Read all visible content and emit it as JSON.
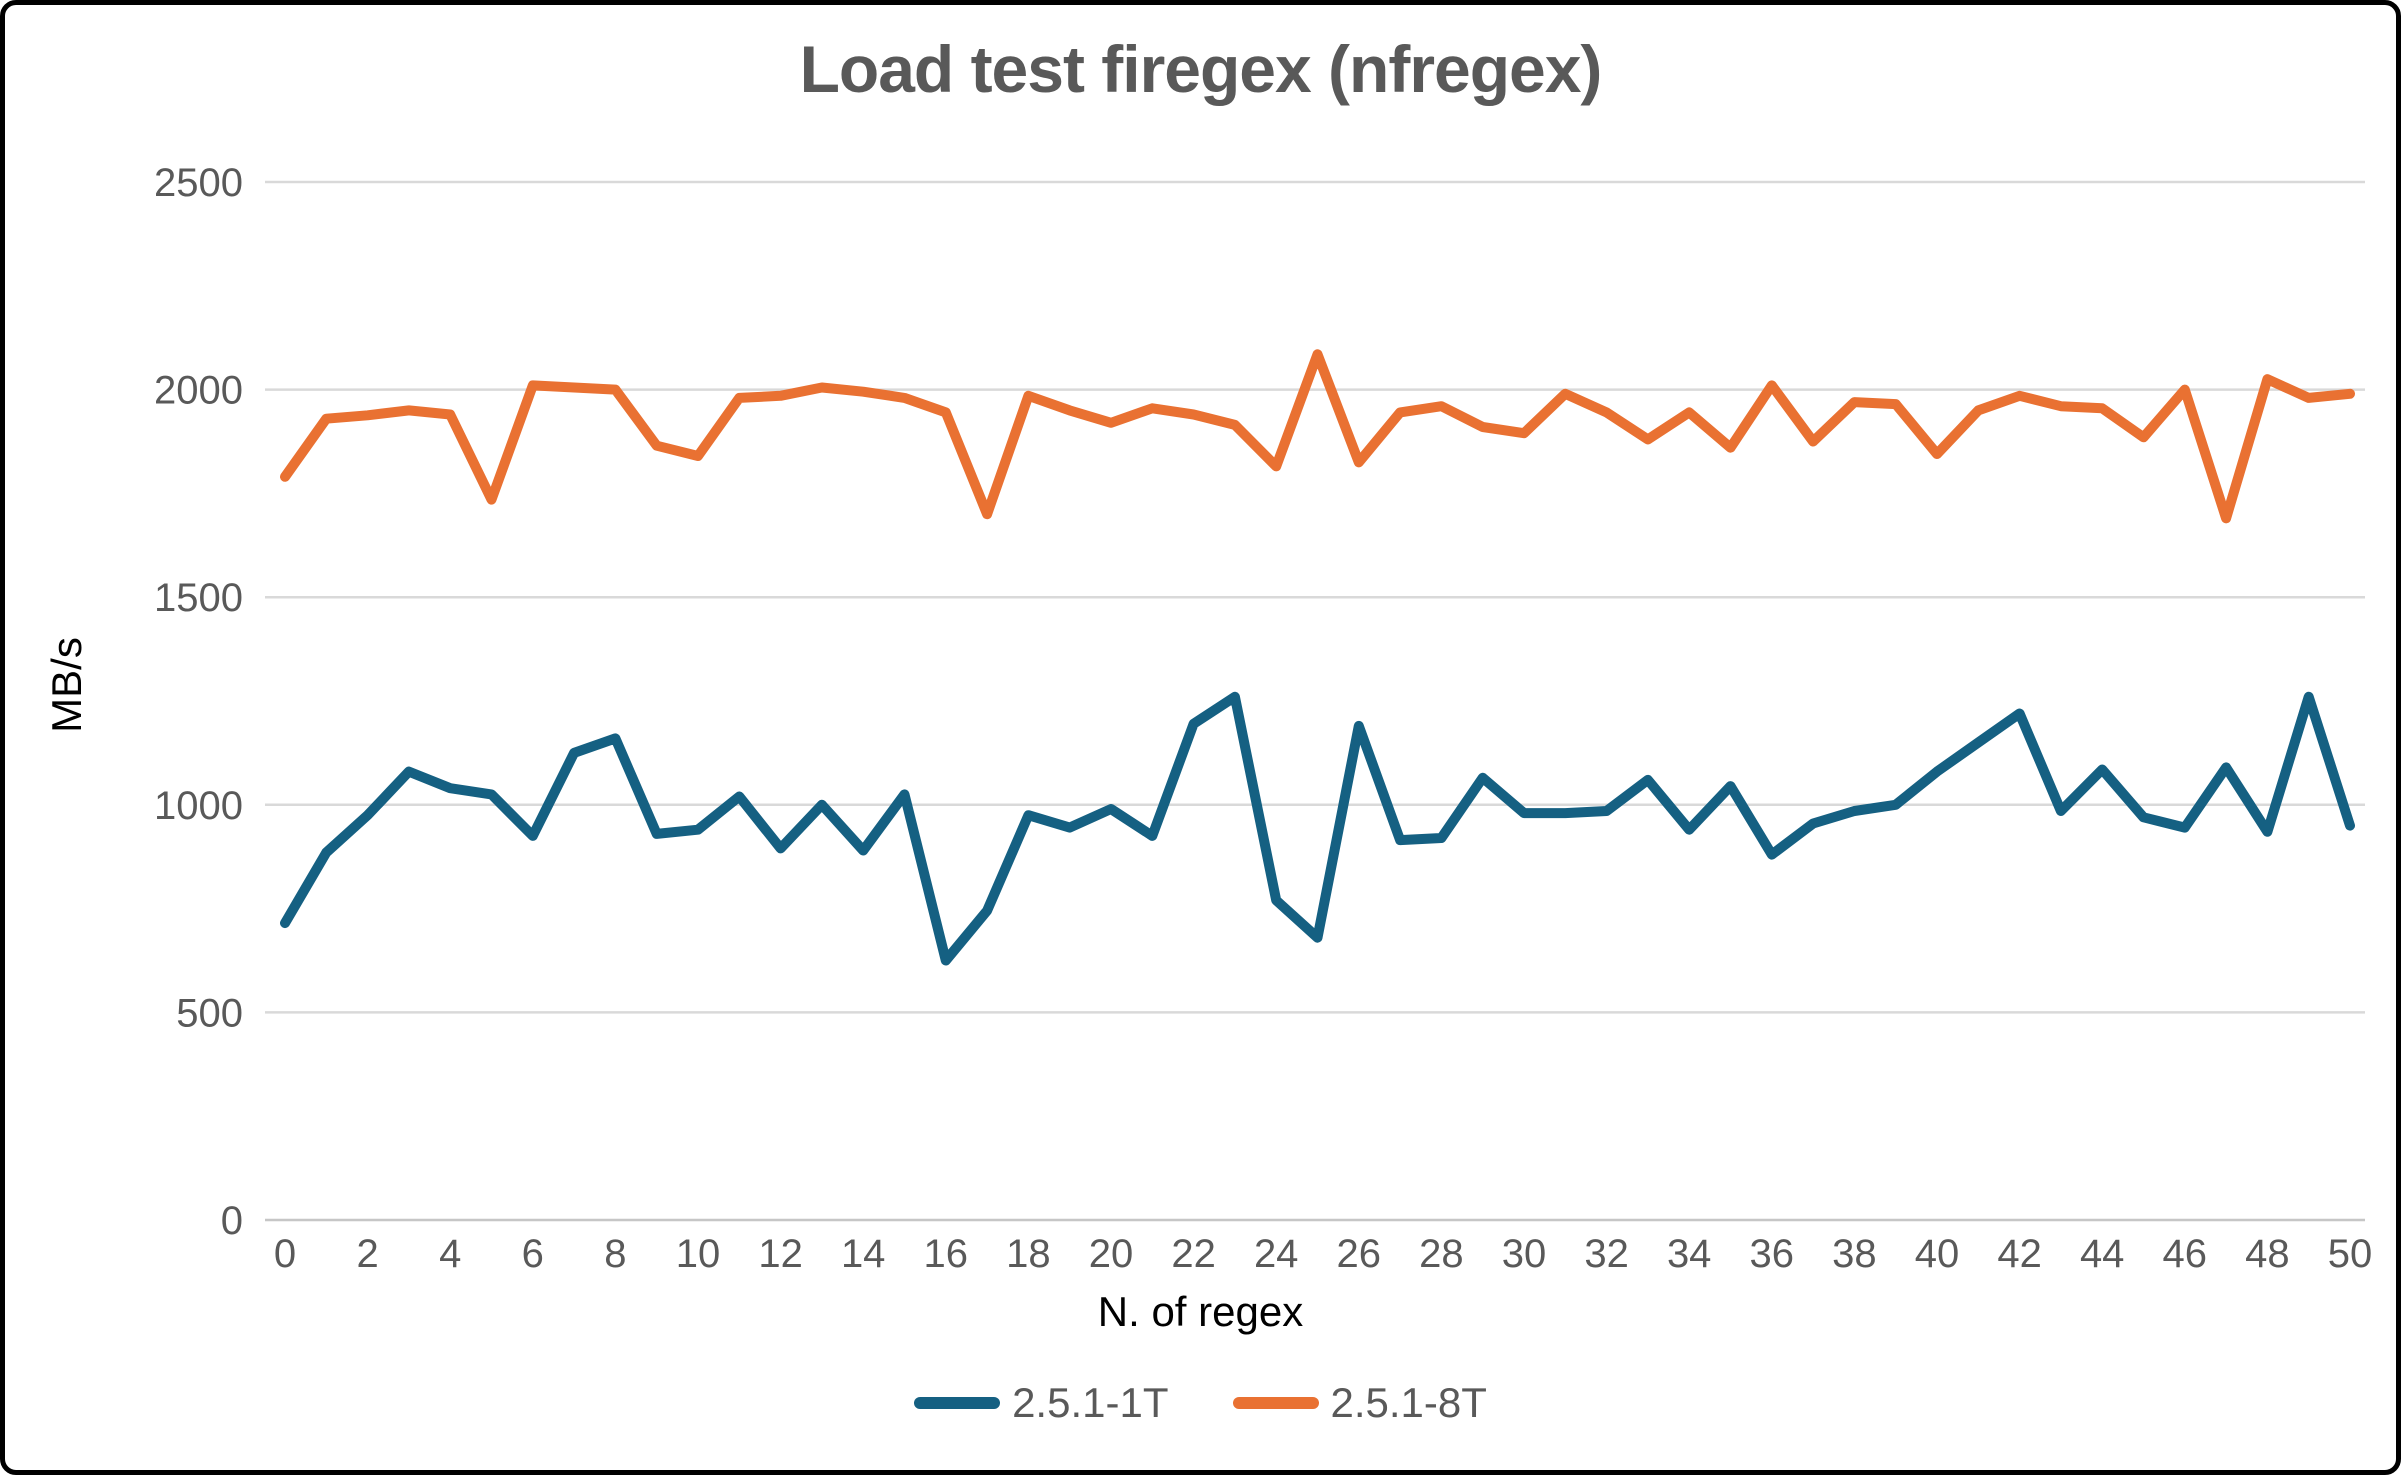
{
  "chart_data": {
    "type": "line",
    "title": "Load test firegex (nfregex)",
    "xlabel": "N. of regex",
    "ylabel": "MB/s",
    "x": [
      0,
      1,
      2,
      3,
      4,
      5,
      6,
      7,
      8,
      9,
      10,
      11,
      12,
      13,
      14,
      15,
      16,
      17,
      18,
      19,
      20,
      21,
      22,
      23,
      24,
      25,
      26,
      27,
      28,
      29,
      30,
      31,
      32,
      33,
      34,
      35,
      36,
      37,
      38,
      39,
      40,
      41,
      42,
      43,
      44,
      45,
      46,
      47,
      48,
      49,
      50
    ],
    "x_tick_interval": 2,
    "x_tick_labels": [
      "0",
      "2",
      "4",
      "6",
      "8",
      "10",
      "12",
      "14",
      "16",
      "18",
      "20",
      "22",
      "24",
      "26",
      "28",
      "30",
      "32",
      "34",
      "36",
      "38",
      "40",
      "42",
      "44",
      "46",
      "48",
      "50"
    ],
    "ylim": [
      0,
      2500
    ],
    "y_ticks": [
      0,
      500,
      1000,
      1500,
      2000,
      2500
    ],
    "grid": true,
    "legend_position": "bottom",
    "series": [
      {
        "name": "2.5.1-1T",
        "color": "#156082",
        "values": [
          715,
          885,
          975,
          1080,
          1040,
          1025,
          925,
          1125,
          1160,
          930,
          940,
          1020,
          895,
          1000,
          890,
          1025,
          625,
          745,
          975,
          945,
          990,
          925,
          1195,
          1260,
          770,
          680,
          1190,
          915,
          920,
          1065,
          980,
          980,
          985,
          1060,
          940,
          1045,
          880,
          955,
          985,
          1000,
          1080,
          1150,
          1220,
          985,
          1085,
          970,
          945,
          1090,
          935,
          1260,
          950
        ]
      },
      {
        "name": "2.5.1-8T",
        "color": "#E97132",
        "values": [
          1790,
          1930,
          1938,
          1950,
          1940,
          1735,
          2010,
          2005,
          2000,
          1865,
          1840,
          1980,
          1985,
          2005,
          1995,
          1980,
          1945,
          1700,
          1985,
          1950,
          1920,
          1955,
          1940,
          1915,
          1815,
          2085,
          1825,
          1945,
          1960,
          1910,
          1895,
          1990,
          1945,
          1880,
          1945,
          1860,
          2010,
          1875,
          1970,
          1965,
          1845,
          1950,
          1985,
          1960,
          1955,
          1885,
          2000,
          1690,
          2025,
          1980,
          1990
        ]
      }
    ]
  },
  "colors": {
    "background": "#ffffff",
    "frame_border": "#000000",
    "gridline": "#D9D9D9",
    "axis_line": "#C6C6C6",
    "tick_label": "#595959",
    "title": "#595959",
    "axis_title": "#000000",
    "legend_text": "#595959"
  }
}
